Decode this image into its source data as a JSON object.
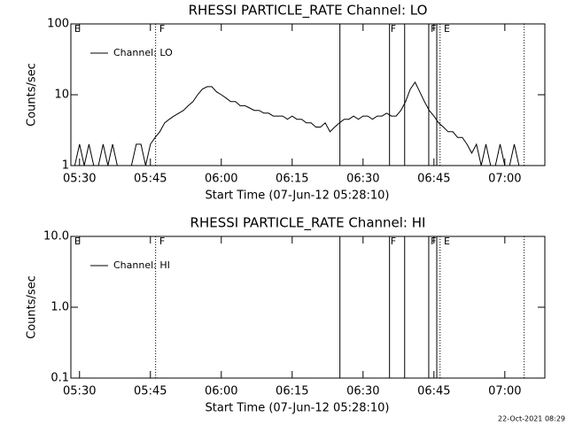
{
  "chart_data": [
    {
      "type": "line",
      "title": "RHESSI PARTICLE_RATE Channel: LO",
      "xlabel": "Start Time (07-Jun-12 05:28:10)",
      "ylabel": "Counts/sec",
      "log_y": true,
      "legend": "upper left",
      "color": "#000000",
      "xlim": [
        328.17,
        428.47
      ],
      "xticks": [
        {
          "value": 330,
          "label": "05:30"
        },
        {
          "value": 345,
          "label": "05:45"
        },
        {
          "value": 360,
          "label": "06:00"
        },
        {
          "value": 375,
          "label": "06:15"
        },
        {
          "value": 390,
          "label": "06:30"
        },
        {
          "value": 405,
          "label": "06:45"
        },
        {
          "value": 420,
          "label": "07:00"
        }
      ],
      "ylim": [
        1,
        100
      ],
      "yticks": [
        1,
        10,
        100
      ],
      "flags": [
        {
          "x": 346.1,
          "style": "dotted"
        },
        {
          "x": 385.1,
          "style": "solid"
        },
        {
          "x": 395.6,
          "style": "solid"
        },
        {
          "x": 398.8,
          "style": "solid"
        },
        {
          "x": 403.9,
          "style": "solid"
        },
        {
          "x": 405.6,
          "style": "solid"
        },
        {
          "x": 406.3,
          "style": "dotted"
        },
        {
          "x": 424.1,
          "style": "dotted"
        }
      ],
      "flag_labels": [
        {
          "x": 328.9,
          "text": "E"
        },
        {
          "x": 346.9,
          "text": "F"
        },
        {
          "x": 395.8,
          "text": "F"
        },
        {
          "x": 404.3,
          "text": "F"
        },
        {
          "x": 407.1,
          "text": "E"
        }
      ],
      "x": [
        329,
        330,
        331,
        332,
        333,
        334,
        335,
        336,
        337,
        338,
        339,
        340,
        341,
        342,
        343,
        344,
        345,
        346,
        347,
        348,
        349,
        350,
        351,
        352,
        353,
        354,
        355,
        356,
        357,
        358,
        359,
        360,
        361,
        362,
        363,
        364,
        365,
        366,
        367,
        368,
        369,
        370,
        371,
        372,
        373,
        374,
        375,
        376,
        377,
        378,
        379,
        380,
        381,
        382,
        383,
        384,
        385,
        386,
        387,
        388,
        389,
        390,
        391,
        392,
        393,
        394,
        395,
        396,
        397,
        398,
        399,
        400,
        401,
        402,
        403,
        404,
        405,
        406,
        407,
        408,
        409,
        410,
        411,
        412,
        413,
        414,
        415,
        416,
        417,
        418,
        419,
        420,
        421,
        422,
        423
      ],
      "series": [
        {
          "name": "Channel: LO",
          "color": "#000000",
          "values": [
            1,
            2,
            1,
            2,
            1,
            1,
            2,
            1,
            2,
            1,
            1,
            1,
            1,
            2,
            2,
            1,
            2,
            2.5,
            3,
            4,
            4.5,
            5,
            5.5,
            6,
            7,
            8,
            10,
            12,
            13,
            13,
            11,
            10,
            9,
            8,
            8,
            7,
            7,
            6.5,
            6,
            6,
            5.5,
            5.5,
            5,
            5,
            5,
            4.5,
            5,
            4.5,
            4.5,
            4,
            4,
            3.5,
            3.5,
            4,
            3,
            3.5,
            4,
            4.5,
            4.5,
            5,
            4.5,
            5,
            5,
            4.5,
            5,
            5,
            5.5,
            5,
            5,
            6,
            8,
            12,
            15,
            11,
            8,
            6,
            5,
            4,
            3.5,
            3,
            3,
            2.5,
            2.5,
            2,
            1.5,
            2,
            1,
            2,
            1,
            1,
            2,
            1,
            1,
            2,
            1
          ]
        }
      ]
    },
    {
      "type": "line",
      "title": "RHESSI PARTICLE_RATE Channel: HI",
      "xlabel": "Start Time (07-Jun-12 05:28:10)",
      "ylabel": "Counts/sec",
      "log_y": true,
      "legend": "upper left",
      "color": "#000000",
      "xlim": [
        328.17,
        428.47
      ],
      "xticks": [
        {
          "value": 330,
          "label": "05:30"
        },
        {
          "value": 345,
          "label": "05:45"
        },
        {
          "value": 360,
          "label": "06:00"
        },
        {
          "value": 375,
          "label": "06:15"
        },
        {
          "value": 390,
          "label": "06:30"
        },
        {
          "value": 405,
          "label": "06:45"
        },
        {
          "value": 420,
          "label": "07:00"
        }
      ],
      "ylim": [
        0.1,
        10
      ],
      "yticks": [
        0.1,
        {
          "value": 1,
          "label": "1.0"
        },
        {
          "value": 10,
          "label": "10.0"
        }
      ],
      "flags": [
        {
          "x": 346.1,
          "style": "dotted"
        },
        {
          "x": 385.1,
          "style": "solid"
        },
        {
          "x": 395.6,
          "style": "solid"
        },
        {
          "x": 398.8,
          "style": "solid"
        },
        {
          "x": 403.9,
          "style": "solid"
        },
        {
          "x": 405.6,
          "style": "solid"
        },
        {
          "x": 406.3,
          "style": "dotted"
        },
        {
          "x": 424.1,
          "style": "dotted"
        }
      ],
      "flag_labels": [
        {
          "x": 328.9,
          "text": "E"
        },
        {
          "x": 346.9,
          "text": "F"
        },
        {
          "x": 395.8,
          "text": "F"
        },
        {
          "x": 404.3,
          "text": "F"
        },
        {
          "x": 407.1,
          "text": "E"
        }
      ],
      "x": [],
      "series": [
        {
          "name": "Channel: HI",
          "color": "#000000",
          "values": []
        }
      ]
    }
  ],
  "footer": "22-Oct-2021 08:29"
}
